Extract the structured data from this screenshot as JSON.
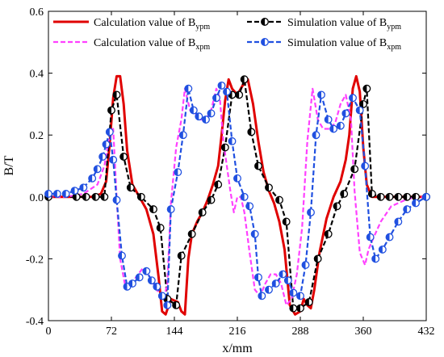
{
  "chart_data": {
    "type": "line",
    "xlabel": "x/mm",
    "ylabel": "B/T",
    "xlim": [
      0,
      432
    ],
    "ylim": [
      -0.4,
      0.6
    ],
    "xticks": [
      "0",
      "72",
      "144",
      "216",
      "288",
      "360",
      "432"
    ],
    "yticks": [
      "-0.4",
      "-0.2",
      "0.0",
      "0.2",
      "0.4",
      "0.6"
    ],
    "grid": false,
    "legend_position": "top",
    "series": [
      {
        "name": "Calculation value of B_ypm",
        "legend_main": "Calculation value of B",
        "legend_sub": "ypm",
        "style": "solid",
        "color": "#e00000",
        "marker": "none",
        "x": [
          0,
          30,
          50,
          60,
          66,
          70,
          74,
          78,
          82,
          86,
          90,
          96,
          104,
          112,
          120,
          126,
          130,
          134,
          140,
          148,
          152,
          156,
          160,
          164,
          170,
          176,
          182,
          188,
          194,
          198,
          202,
          206,
          210,
          216,
          222,
          228,
          234,
          240,
          246,
          252,
          258,
          264,
          270,
          276,
          282,
          288,
          292,
          296,
          300,
          304,
          310,
          318,
          326,
          334,
          340,
          344,
          348,
          352,
          356,
          360,
          364,
          370,
          380,
          400,
          432
        ],
        "y": [
          0.0,
          0.0,
          0.0,
          0.01,
          0.05,
          0.17,
          0.32,
          0.39,
          0.39,
          0.3,
          0.15,
          0.04,
          0.0,
          -0.04,
          -0.12,
          -0.26,
          -0.37,
          -0.38,
          -0.33,
          -0.34,
          -0.37,
          -0.38,
          -0.2,
          -0.12,
          -0.08,
          -0.05,
          -0.01,
          0.04,
          0.1,
          0.2,
          0.31,
          0.38,
          0.35,
          0.33,
          0.36,
          0.38,
          0.3,
          0.18,
          0.08,
          0.02,
          -0.02,
          -0.08,
          -0.17,
          -0.35,
          -0.38,
          -0.37,
          -0.33,
          -0.35,
          -0.36,
          -0.3,
          -0.18,
          -0.07,
          0.0,
          0.05,
          0.12,
          0.2,
          0.35,
          0.39,
          0.34,
          0.16,
          0.04,
          0.0,
          0.0,
          0.0,
          0.0
        ]
      },
      {
        "name": "Simulation value of B_ypm",
        "legend_main": "Simulation value of B",
        "legend_sub": "ypm",
        "style": "dashed",
        "color": "#000000",
        "marker": "half-filled-circle",
        "x": [
          0,
          32,
          43,
          54,
          64,
          72,
          78,
          86,
          94,
          106,
          120,
          128,
          136,
          146,
          152,
          164,
          176,
          186,
          194,
          202,
          210,
          218,
          224,
          232,
          240,
          252,
          264,
          272,
          280,
          288,
          298,
          308,
          320,
          330,
          338,
          350,
          360,
          364,
          370,
          380,
          390,
          400,
          410,
          420,
          432
        ],
        "y": [
          0.0,
          0.0,
          0.0,
          0.0,
          0.0,
          0.28,
          0.33,
          0.13,
          0.03,
          0.0,
          -0.04,
          -0.1,
          -0.33,
          -0.35,
          -0.19,
          -0.12,
          -0.05,
          -0.01,
          0.04,
          0.16,
          0.33,
          0.33,
          0.38,
          0.21,
          0.1,
          0.03,
          -0.01,
          -0.08,
          -0.36,
          -0.36,
          -0.34,
          -0.2,
          -0.12,
          -0.03,
          0.01,
          0.09,
          0.3,
          0.35,
          0.01,
          0.0,
          0.0,
          0.0,
          0.0,
          0.0,
          0.0
        ]
      },
      {
        "name": "Calculation value of B_xpm",
        "legend_main": "Calculation value of B",
        "legend_sub": "xpm",
        "style": "dashed",
        "color": "#ff40ff",
        "marker": "none",
        "x": [
          0,
          20,
          40,
          56,
          64,
          70,
          74,
          78,
          82,
          88,
          94,
          100,
          108,
          114,
          120,
          124,
          128,
          132,
          136,
          140,
          146,
          152,
          156,
          162,
          168,
          174,
          180,
          186,
          192,
          196,
          200,
          204,
          208,
          212,
          216,
          220,
          224,
          230,
          236,
          242,
          248,
          254,
          260,
          266,
          272,
          278,
          284,
          290,
          296,
          302,
          308,
          314,
          322,
          328,
          334,
          340,
          346,
          350,
          356,
          362,
          366,
          372,
          380,
          392,
          408,
          420,
          432
        ],
        "y": [
          0.0,
          0.0,
          0.01,
          0.04,
          0.1,
          0.2,
          0.22,
          0.0,
          -0.2,
          -0.29,
          -0.29,
          -0.26,
          -0.23,
          -0.25,
          -0.28,
          -0.3,
          -0.32,
          -0.33,
          -0.28,
          -0.02,
          0.16,
          0.25,
          0.35,
          0.28,
          0.27,
          0.25,
          0.25,
          0.28,
          0.35,
          0.32,
          0.18,
          0.1,
          0.02,
          -0.05,
          0.0,
          0.0,
          -0.05,
          -0.18,
          -0.3,
          -0.32,
          -0.28,
          -0.25,
          -0.25,
          -0.28,
          -0.35,
          -0.33,
          -0.25,
          -0.1,
          0.18,
          0.35,
          0.25,
          0.22,
          0.22,
          0.24,
          0.3,
          0.33,
          0.25,
          0.02,
          -0.18,
          -0.22,
          -0.17,
          -0.13,
          -0.08,
          -0.03,
          -0.01,
          0.0,
          0.0
        ]
      },
      {
        "name": "Simulation value of B_xpm",
        "legend_main": "Simulation value of B",
        "legend_sub": "xpm",
        "style": "dashed",
        "color": "#2050e0",
        "marker": "half-filled-circle",
        "x": [
          0,
          10,
          20,
          30,
          40,
          50,
          56,
          62,
          66,
          70,
          74,
          78,
          84,
          90,
          96,
          104,
          112,
          118,
          124,
          130,
          136,
          140,
          148,
          154,
          160,
          166,
          172,
          180,
          186,
          192,
          198,
          204,
          210,
          216,
          224,
          230,
          236,
          240,
          244,
          252,
          260,
          268,
          274,
          280,
          288,
          294,
          300,
          306,
          312,
          320,
          326,
          334,
          340,
          348,
          356,
          362,
          368,
          374,
          382,
          390,
          400,
          410,
          420,
          432
        ],
        "y": [
          0.01,
          0.01,
          0.01,
          0.02,
          0.03,
          0.06,
          0.09,
          0.13,
          0.17,
          0.21,
          0.12,
          -0.01,
          -0.19,
          -0.29,
          -0.28,
          -0.26,
          -0.24,
          -0.27,
          -0.29,
          -0.32,
          -0.35,
          -0.04,
          0.08,
          0.2,
          0.35,
          0.28,
          0.26,
          0.25,
          0.27,
          0.32,
          0.36,
          0.34,
          0.18,
          0.06,
          0.0,
          -0.03,
          -0.12,
          -0.26,
          -0.32,
          -0.3,
          -0.28,
          -0.25,
          -0.27,
          -0.31,
          -0.32,
          -0.22,
          -0.05,
          0.2,
          0.33,
          0.25,
          0.22,
          0.23,
          0.27,
          0.32,
          0.28,
          0.1,
          -0.13,
          -0.2,
          -0.17,
          -0.13,
          -0.08,
          -0.04,
          -0.02,
          0.0
        ]
      }
    ]
  }
}
